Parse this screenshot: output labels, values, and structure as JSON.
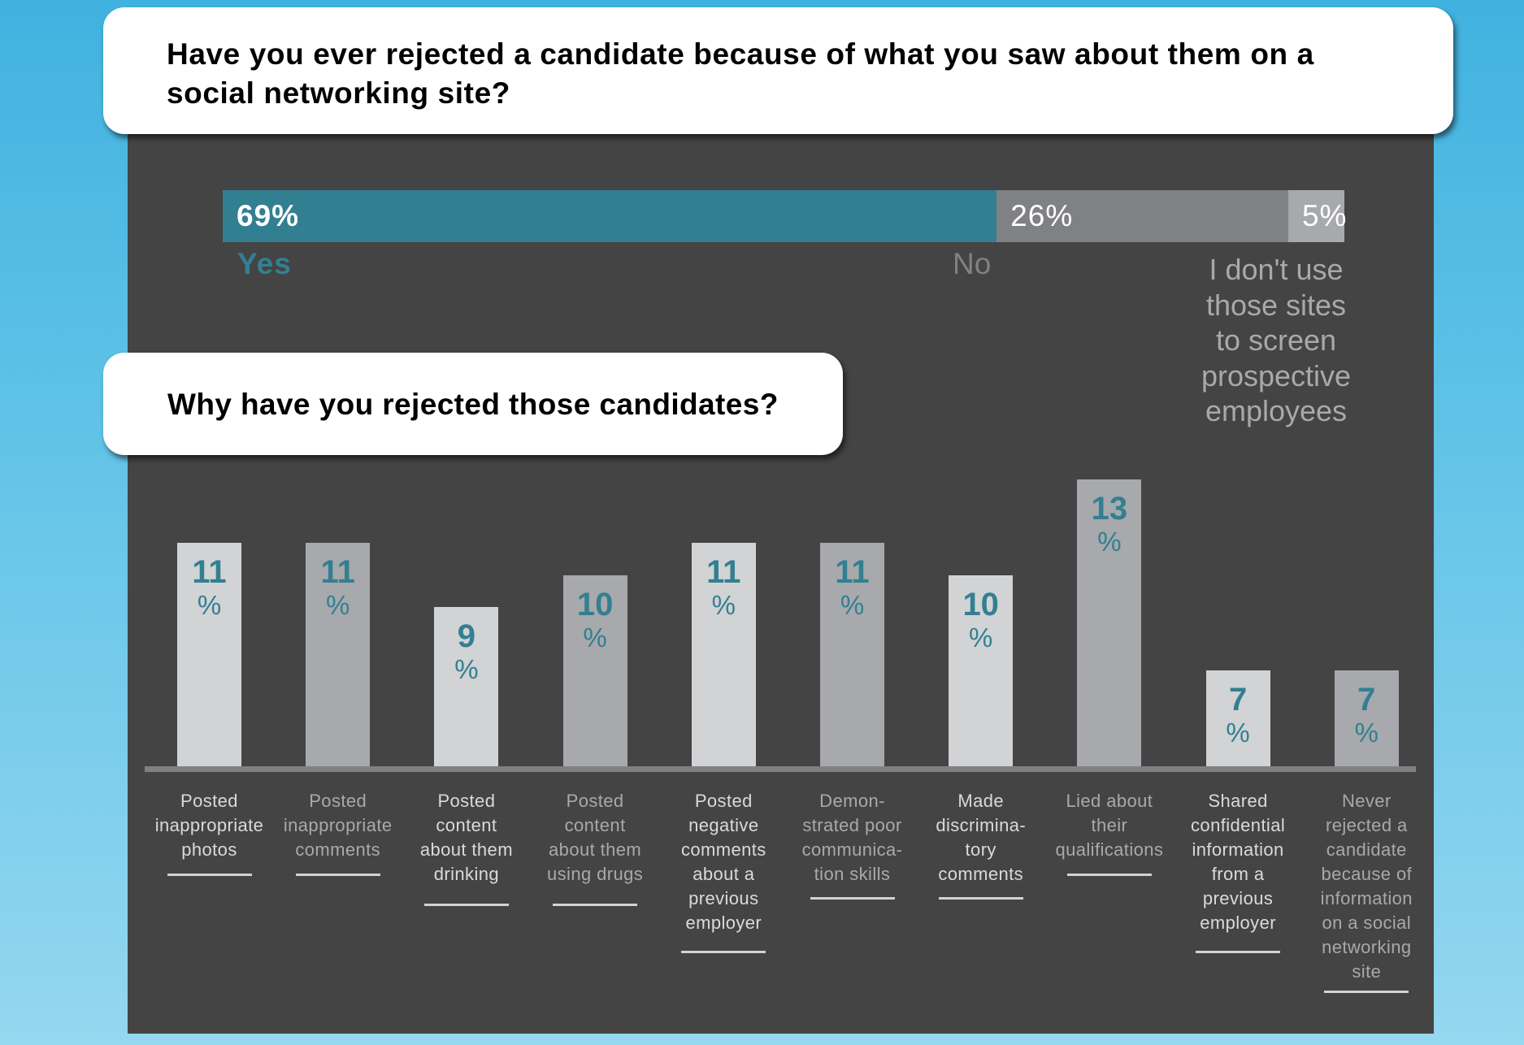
{
  "question1": {
    "text": "Have you ever rejected a candidate because of what you saw about them on a social networking site?"
  },
  "question2": {
    "text": "Why have you rejected those candidates?"
  },
  "colors": {
    "teal": "#337f92",
    "panel": "#444444",
    "bar_light": "#d1d3d4",
    "bar_mid": "#a7a9ac",
    "no_grey": "#808184",
    "label_light": "#d9dadb",
    "label_mid": "#a7a9ac"
  },
  "chart_data": [
    {
      "type": "bar",
      "orientation": "horizontal-stacked",
      "title": "Have you ever rejected a candidate because of what you saw about them on a social networking site?",
      "categories": [
        "Yes",
        "No",
        "I don't use those sites to screen prospective employees"
      ],
      "values": [
        69,
        26,
        5
      ],
      "value_labels": [
        "69%",
        "26%",
        "5%"
      ],
      "display_labels": [
        "Yes",
        "No",
        "I don't use\nthose sites\nto screen\nprospective\nemployees"
      ],
      "unit": "%",
      "legend": "none",
      "grid": false
    },
    {
      "type": "bar",
      "title": "Why have you rejected those candidates?",
      "categories": [
        "Posted inappropriate photos",
        "Posted inappropriate comments",
        "Posted content about them drinking",
        "Posted content about them using drugs",
        "Posted negative comments about a previous employer",
        "Demonstrated poor communication skills",
        "Made discriminatory comments",
        "Lied about their qualifications",
        "Shared confidential information from a previous employer",
        "Never rejected a candidate because of information on a social networking site"
      ],
      "display_labels": [
        "Posted\ninappropriate\nphotos",
        "Posted\ninappropriate\ncomments",
        "Posted\ncontent\nabout them\ndrinking",
        "Posted\ncontent\nabout them\nusing drugs",
        "Posted\nnegative\ncomments\nabout a\nprevious\nemployer",
        "Demon-\nstrated poor\ncommunica-\ntion skills",
        "Made\ndiscrimina-\ntory\ncomments",
        "Lied about\ntheir\nqualifications",
        "Shared\nconfidential\ninformation\nfrom a\nprevious\nemployer",
        "Never\nrejected a\ncandidate\nbecause of\ninformation\non a social\nnetworking\nsite"
      ],
      "values": [
        11,
        11,
        9,
        10,
        11,
        11,
        10,
        13,
        7,
        7
      ],
      "unit": "%",
      "ylim": [
        4,
        13
      ],
      "xlabel": "",
      "ylabel": "",
      "legend": "none",
      "grid": false
    }
  ]
}
